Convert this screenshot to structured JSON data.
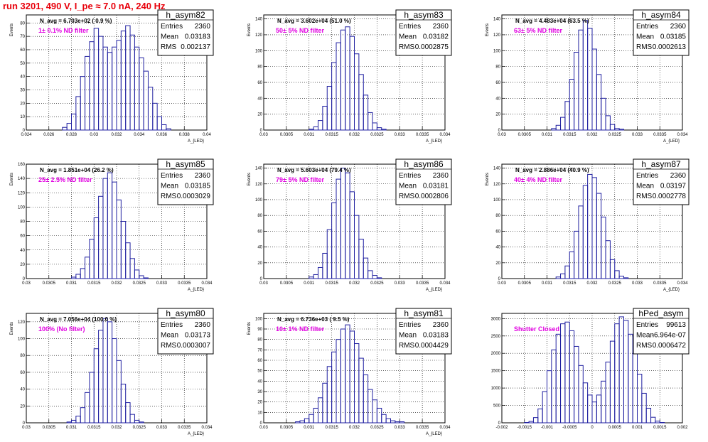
{
  "header": {
    "title": "run 3201,   490 V, I_pe ≈ 7.0 nA, 240 Hz"
  },
  "colors": {
    "title": "#e8000b",
    "histogram": "#1f1fa0",
    "annotation": "#e100e1",
    "grid": "#000000"
  },
  "chart_data": [
    {
      "type": "histogram",
      "name": "h_asym82",
      "n_avg": "N_avg = 6.703e+02 ( 0.9 %)",
      "filter": "1± 0.1% ND filter",
      "stats": {
        "entries": "2360",
        "mean": "0.03183",
        "rms": "0.002137"
      },
      "xlabel": "A_{LED}",
      "ylabel": "Events",
      "xlim": [
        0.024,
        0.04
      ],
      "ylim": [
        0,
        86
      ],
      "xticks": [
        "0.024",
        "0.026",
        "0.028",
        "0.03",
        "0.032",
        "0.034",
        "0.036",
        "0.038",
        "0.04"
      ],
      "yticks": [
        "0",
        "10",
        "20",
        "30",
        "40",
        "50",
        "60",
        "70",
        "80"
      ],
      "x": [
        0.0272,
        0.0276,
        0.028,
        0.0284,
        0.0288,
        0.0292,
        0.0296,
        0.03,
        0.0304,
        0.0308,
        0.0312,
        0.0316,
        0.032,
        0.0324,
        0.0328,
        0.0332,
        0.0336,
        0.034,
        0.0344,
        0.0348,
        0.0352,
        0.0356,
        0.036,
        0.0364
      ],
      "values": [
        2,
        5,
        12,
        25,
        40,
        55,
        66,
        76,
        70,
        62,
        58,
        62,
        67,
        74,
        78,
        71,
        62,
        54,
        44,
        32,
        20,
        10,
        4,
        1
      ]
    },
    {
      "type": "histogram",
      "name": "h_asym83",
      "n_avg": "N_avg = 3.602e+04 (51.0 %)",
      "filter": "50± 5% ND filter",
      "stats": {
        "entries": "2360",
        "mean": "0.03182",
        "rms": "0.0002875"
      },
      "xlabel": "A_{LED}",
      "ylabel": "Events",
      "xlim": [
        0.03,
        0.034
      ],
      "ylim": [
        0,
        145
      ],
      "xticks": [
        "0.03",
        "0.0305",
        "0.031",
        "0.0315",
        "0.032",
        "0.0325",
        "0.033",
        "0.0335",
        "0.034"
      ],
      "yticks": [
        "0",
        "20",
        "40",
        "60",
        "80",
        "100",
        "120",
        "140"
      ],
      "x": [
        0.031,
        0.0311,
        0.0312,
        0.0313,
        0.0314,
        0.0315,
        0.0316,
        0.0317,
        0.0318,
        0.0319,
        0.032,
        0.0321,
        0.0322,
        0.0323,
        0.0324,
        0.0325,
        0.0326
      ],
      "values": [
        1,
        4,
        12,
        30,
        55,
        85,
        110,
        126,
        130,
        118,
        96,
        70,
        44,
        22,
        9,
        3,
        1
      ]
    },
    {
      "type": "histogram",
      "name": "h_asym84",
      "n_avg": "N_avg = 4.483e+04 (63.5 %)",
      "filter": "63± 5% ND filter",
      "stats": {
        "entries": "2360",
        "mean": "0.03185",
        "rms": "0.0002613"
      },
      "xlabel": "A_{LED}",
      "ylabel": "Events",
      "xlim": [
        0.03,
        0.034
      ],
      "ylim": [
        0,
        145
      ],
      "xticks": [
        "0.03",
        "0.0305",
        "0.031",
        "0.0315",
        "0.032",
        "0.0325",
        "0.033",
        "0.0335",
        "0.034"
      ],
      "yticks": [
        "0",
        "20",
        "40",
        "60",
        "80",
        "100",
        "120",
        "140"
      ],
      "x": [
        0.0311,
        0.0312,
        0.0313,
        0.0314,
        0.0315,
        0.0316,
        0.0317,
        0.0318,
        0.0319,
        0.032,
        0.0321,
        0.0322,
        0.0323,
        0.0324,
        0.0325,
        0.0326
      ],
      "values": [
        2,
        6,
        16,
        36,
        64,
        98,
        126,
        138,
        128,
        102,
        70,
        40,
        18,
        7,
        2,
        1
      ]
    },
    {
      "type": "histogram",
      "name": "h_asym85",
      "n_avg": "N_avg = 1.851e+04 (26.2 %)",
      "filter": "25± 2.5% ND filter",
      "stats": {
        "entries": "2360",
        "mean": "0.03185",
        "rms": "0.0003029"
      },
      "xlabel": "A_{LED}",
      "ylabel": "Events",
      "xlim": [
        0.03,
        0.034
      ],
      "ylim": [
        0,
        160
      ],
      "xticks": [
        "0.03",
        "0.0305",
        "0.031",
        "0.0315",
        "0.032",
        "0.0325",
        "0.033",
        "0.0335",
        "0.034"
      ],
      "yticks": [
        "0",
        "20",
        "40",
        "60",
        "80",
        "100",
        "120",
        "140",
        "160"
      ],
      "x": [
        0.031,
        0.0311,
        0.0312,
        0.0313,
        0.0314,
        0.0315,
        0.0316,
        0.0317,
        0.0318,
        0.0319,
        0.032,
        0.0321,
        0.0322,
        0.0323,
        0.0324,
        0.0325,
        0.0326
      ],
      "values": [
        2,
        6,
        14,
        30,
        55,
        85,
        115,
        140,
        148,
        135,
        110,
        80,
        50,
        28,
        12,
        4,
        1
      ]
    },
    {
      "type": "histogram",
      "name": "h_asym86",
      "n_avg": "N_avg = 5.603e+04 (79.4 %)",
      "filter": "79± 5% ND filter",
      "stats": {
        "entries": "2360",
        "mean": "0.03181",
        "rms": "0.0002806"
      },
      "xlabel": "A_{LED}",
      "ylabel": "Events",
      "xlim": [
        0.03,
        0.034
      ],
      "ylim": [
        0,
        145
      ],
      "xticks": [
        "0.03",
        "0.0305",
        "0.031",
        "0.0315",
        "0.032",
        "0.0325",
        "0.033",
        "0.0335",
        "0.034"
      ],
      "yticks": [
        "0",
        "20",
        "40",
        "60",
        "80",
        "100",
        "120",
        "140"
      ],
      "x": [
        0.031,
        0.0311,
        0.0312,
        0.0313,
        0.0314,
        0.0315,
        0.0316,
        0.0317,
        0.0318,
        0.0319,
        0.032,
        0.0321,
        0.0322,
        0.0323,
        0.0324,
        0.0325
      ],
      "values": [
        2,
        5,
        14,
        32,
        62,
        96,
        126,
        140,
        134,
        110,
        80,
        50,
        26,
        10,
        4,
        1
      ]
    },
    {
      "type": "histogram",
      "name": "h_asym87",
      "n_avg": "N_avg = 2.886e+04 (40.9 %)",
      "filter": "40± 4% ND filter",
      "stats": {
        "entries": "2360",
        "mean": "0.03197",
        "rms": "0.0002778"
      },
      "xlabel": "A_{LED}",
      "ylabel": "Events",
      "xlim": [
        0.03,
        0.034
      ],
      "ylim": [
        0,
        145
      ],
      "xticks": [
        "0.03",
        "0.0305",
        "0.031",
        "0.0315",
        "0.032",
        "0.0325",
        "0.033",
        "0.0335",
        "0.034"
      ],
      "yticks": [
        "0",
        "20",
        "40",
        "60",
        "80",
        "100",
        "120",
        "140"
      ],
      "x": [
        0.0312,
        0.0313,
        0.0314,
        0.0315,
        0.0316,
        0.0317,
        0.0318,
        0.0319,
        0.032,
        0.0321,
        0.0322,
        0.0323,
        0.0324,
        0.0325,
        0.0326,
        0.0327
      ],
      "values": [
        2,
        6,
        16,
        34,
        60,
        92,
        118,
        132,
        128,
        108,
        78,
        48,
        24,
        10,
        3,
        1
      ]
    },
    {
      "type": "histogram",
      "name": "h_asym80",
      "n_avg": "N_avg = 7.056e+04 (100.0 %)",
      "filter": "100% (No filter)",
      "stats": {
        "entries": "2360",
        "mean": "0.03173",
        "rms": "0.0003007"
      },
      "xlabel": "A_{LED}",
      "ylabel": "Events",
      "xlim": [
        0.03,
        0.034
      ],
      "ylim": [
        0,
        130
      ],
      "xticks": [
        "0.03",
        "0.0305",
        "0.031",
        "0.0315",
        "0.032",
        "0.0325",
        "0.033",
        "0.0335",
        "0.034"
      ],
      "yticks": [
        "0",
        "20",
        "40",
        "60",
        "80",
        "100",
        "120"
      ],
      "x": [
        0.0309,
        0.031,
        0.0311,
        0.0312,
        0.0313,
        0.0314,
        0.0315,
        0.0316,
        0.0317,
        0.0318,
        0.0319,
        0.032,
        0.0321,
        0.0322,
        0.0323,
        0.0324,
        0.0325
      ],
      "values": [
        1,
        3,
        8,
        18,
        36,
        60,
        88,
        110,
        124,
        120,
        100,
        74,
        46,
        24,
        10,
        3,
        1
      ]
    },
    {
      "type": "histogram",
      "name": "h_asym81",
      "n_avg": "N_avg = 6.736e+03 ( 9.5 %)",
      "filter": "10± 1% ND filter",
      "stats": {
        "entries": "2360",
        "mean": "0.03183",
        "rms": "0.0004429"
      },
      "xlabel": "A_{LED}",
      "ylabel": "Events",
      "xlim": [
        0.03,
        0.034
      ],
      "ylim": [
        0,
        105
      ],
      "xticks": [
        "0.03",
        "0.0305",
        "0.031",
        "0.0315",
        "0.032",
        "0.0325",
        "0.033",
        "0.0335",
        "0.034"
      ],
      "yticks": [
        "0",
        "10",
        "20",
        "30",
        "40",
        "50",
        "60",
        "70",
        "80",
        "90",
        "100"
      ],
      "x": [
        0.0307,
        0.0308,
        0.0309,
        0.031,
        0.0311,
        0.0312,
        0.0313,
        0.0314,
        0.0315,
        0.0316,
        0.0317,
        0.0318,
        0.0319,
        0.032,
        0.0321,
        0.0322,
        0.0323,
        0.0324,
        0.0325,
        0.0326,
        0.0327,
        0.0328,
        0.0329,
        0.033
      ],
      "values": [
        1,
        2,
        4,
        8,
        14,
        24,
        38,
        54,
        68,
        80,
        90,
        94,
        88,
        76,
        62,
        46,
        32,
        22,
        14,
        8,
        4,
        2,
        1,
        1
      ]
    },
    {
      "type": "histogram",
      "name": "hPed_asym",
      "n_avg": "",
      "filter": "Shutter Closed",
      "stats": {
        "entries": "99613",
        "mean": "-6.964e-07",
        "rms": "0.0006472"
      },
      "xlabel": "",
      "ylabel": "",
      "xlim": [
        -0.002,
        0.002
      ],
      "ylim": [
        0,
        3150
      ],
      "xticks": [
        "-0.002",
        "-0.0015",
        "-0.001",
        "-0.0005",
        "0",
        "0.0005",
        "0.001",
        "0.0015",
        "0.002"
      ],
      "yticks": [
        "0",
        "500",
        "1000",
        "1500",
        "2000",
        "2500",
        "3000"
      ],
      "x": [
        -0.0015,
        -0.0014,
        -0.0013,
        -0.0012,
        -0.0011,
        -0.001,
        -0.0009,
        -0.0008,
        -0.0007,
        -0.0006,
        -0.0005,
        -0.0004,
        -0.0003,
        -0.0002,
        -0.0001,
        0,
        0.0001,
        0.0002,
        0.0003,
        0.0004,
        0.0005,
        0.0006,
        0.0007,
        0.0008,
        0.0009,
        0.001,
        0.0011,
        0.0012,
        0.0013,
        0.0014,
        0.0015
      ],
      "values": [
        10,
        40,
        150,
        400,
        900,
        1500,
        2100,
        2550,
        2850,
        2900,
        2650,
        2200,
        1650,
        1150,
        800,
        600,
        800,
        1200,
        1750,
        2350,
        2850,
        3050,
        2950,
        2550,
        2000,
        1400,
        850,
        420,
        160,
        50,
        10
      ]
    }
  ]
}
